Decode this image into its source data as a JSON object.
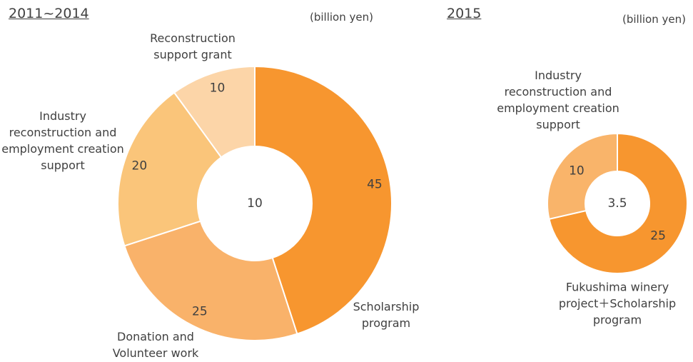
{
  "chart_data": [
    {
      "type": "donut",
      "title": "2011~2014",
      "unit": "(billion yen)",
      "center_value": 10,
      "categories": [
        "Scholarship program",
        "Donation and Volunteer work",
        "Industry reconstruction and employment creation support",
        "Reconstruction support grant"
      ],
      "values": [
        45,
        25,
        20,
        10
      ],
      "colors": [
        "#f7962f",
        "#f9b26a",
        "#fac57a",
        "#fcd5a8"
      ]
    },
    {
      "type": "donut",
      "title": "2015",
      "unit": "(billion yen)",
      "center_value": 3.5,
      "categories": [
        "Fukushima winery project＋Scholarship program",
        "Industry reconstruction and employment creation support"
      ],
      "values": [
        25,
        10
      ],
      "colors": [
        "#f7962f",
        "#f9b46a"
      ]
    }
  ]
}
